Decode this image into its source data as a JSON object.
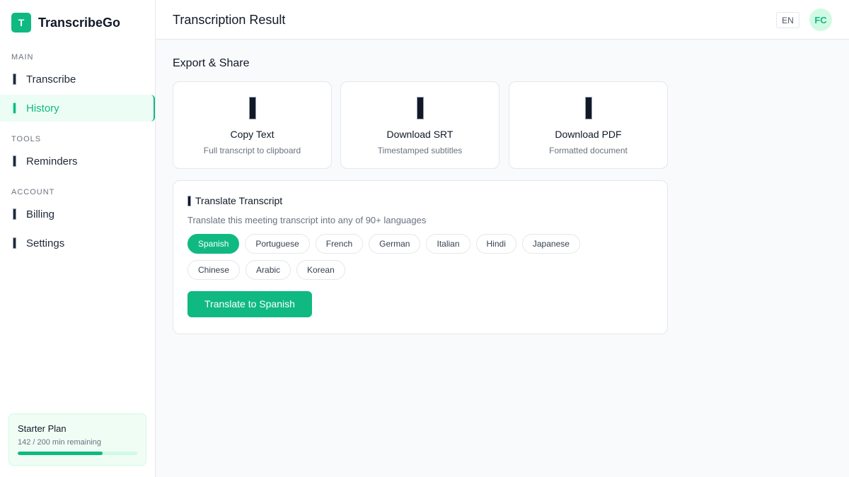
{
  "app": {
    "logo_letter": "T",
    "name": "TranscribeGo"
  },
  "sidebar": {
    "sections": [
      "MAIN",
      "TOOLS",
      "ACCOUNT"
    ],
    "items": [
      {
        "label": "Transcribe"
      },
      {
        "label": "History",
        "active": true
      },
      {
        "label": "Reminders"
      },
      {
        "label": "Billing"
      },
      {
        "label": "Settings"
      }
    ],
    "plan": {
      "name": "Starter Plan",
      "usage": "142 / 200 min remaining",
      "progress_percent": 71
    }
  },
  "header": {
    "title": "Transcription Result",
    "language": "EN",
    "avatar": "FC"
  },
  "export": {
    "heading": "Export & Share",
    "cards": [
      {
        "title": "Copy Text",
        "subtitle": "Full transcript to clipboard"
      },
      {
        "title": "Download SRT",
        "subtitle": "Timestamped subtitles"
      },
      {
        "title": "Download PDF",
        "subtitle": "Formatted document"
      }
    ]
  },
  "translate": {
    "title": "Translate Transcript",
    "subtitle": "Translate this meeting transcript into any of 90+ languages",
    "languages": [
      "Spanish",
      "Portuguese",
      "French",
      "German",
      "Italian",
      "Hindi",
      "Japanese",
      "Chinese",
      "Arabic",
      "Korean"
    ],
    "selected": "Spanish",
    "button": "Translate to Spanish"
  },
  "colors": {
    "accent": "#10b981"
  }
}
